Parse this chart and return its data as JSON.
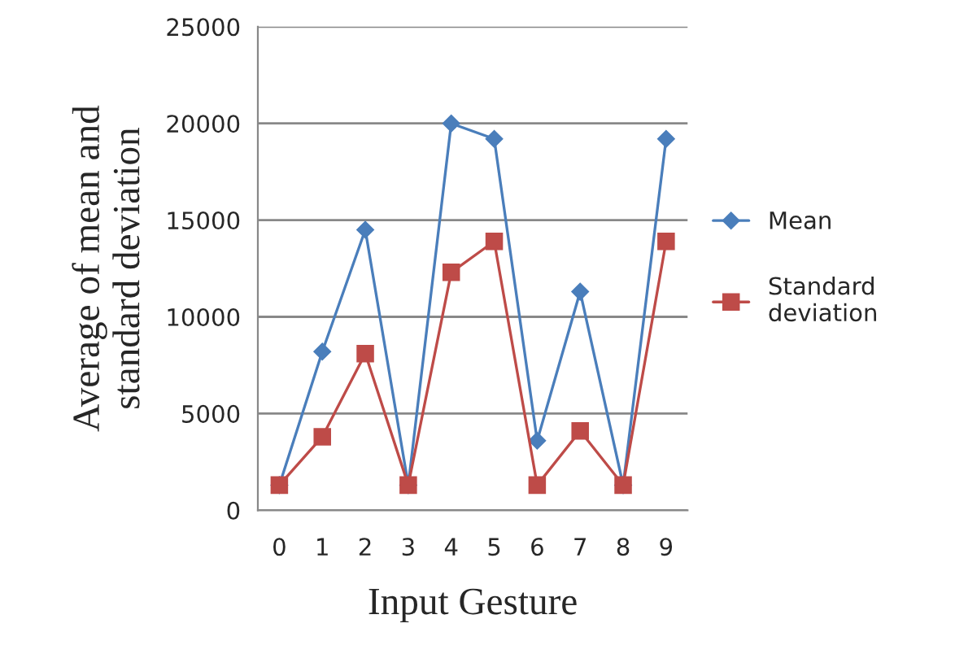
{
  "chart_data": {
    "type": "line",
    "xlabel": "Input Gesture",
    "ylabel": "Average of mean and\nstandard deviation",
    "categories": [
      "0",
      "1",
      "2",
      "3",
      "4",
      "5",
      "6",
      "7",
      "8",
      "9"
    ],
    "series": [
      {
        "name": "Mean",
        "color": "#4a7ebb",
        "marker": "diamond",
        "values": [
          1300,
          8200,
          14500,
          1300,
          20000,
          19200,
          3600,
          11300,
          1300,
          19200
        ]
      },
      {
        "name": "Standard\ndeviation",
        "color": "#be4b48",
        "marker": "square",
        "values": [
          1300,
          3800,
          8100,
          1300,
          12300,
          13900,
          1300,
          4100,
          1300,
          13900
        ]
      }
    ],
    "ylim": [
      0,
      25000
    ],
    "yticks": [
      0,
      5000,
      10000,
      15000,
      20000,
      25000
    ],
    "grid": "y",
    "legend": "right"
  }
}
